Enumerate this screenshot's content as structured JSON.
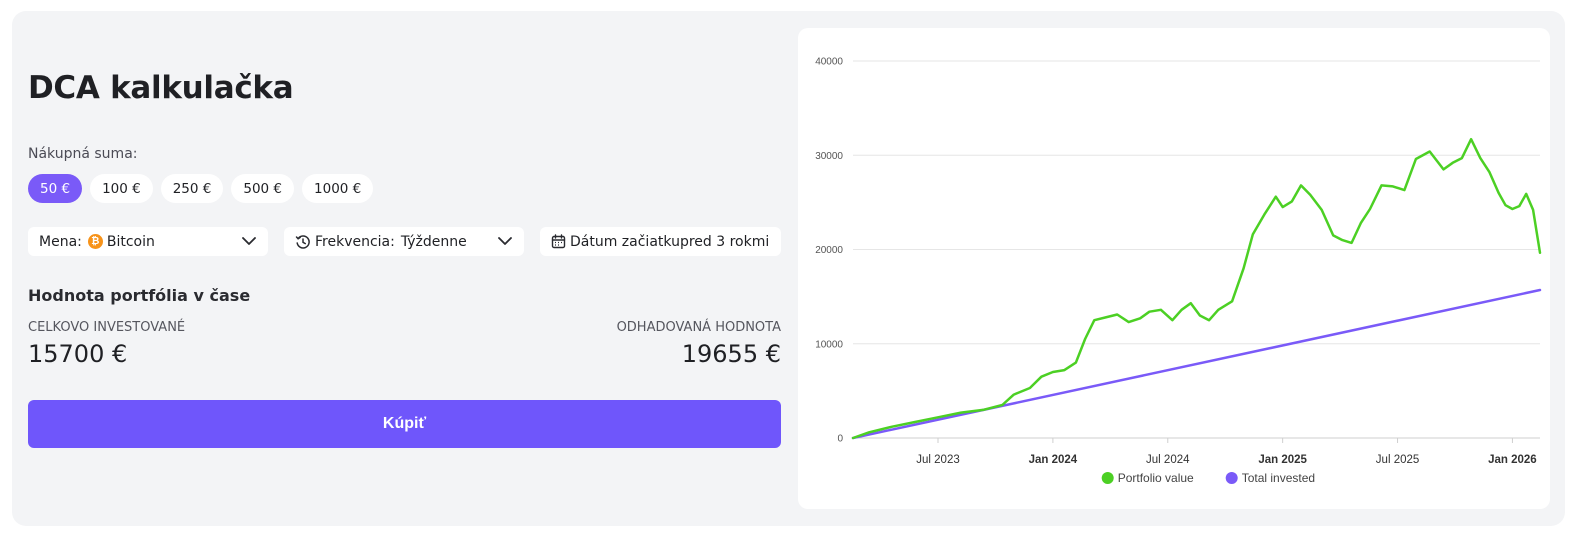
{
  "page": {
    "title": "DCA kalkulačka",
    "amount_label": "Nákupná suma:",
    "amounts": [
      "50 €",
      "100 €",
      "250 €",
      "500 €",
      "1000 €"
    ],
    "selected_amount": "50 €",
    "currency": {
      "label": "Mena:",
      "value": "Bitcoin",
      "icon": "bitcoin-icon"
    },
    "frequency": {
      "label": "Frekvencia:",
      "value": "Týždenne",
      "icon": "history-icon"
    },
    "start_date": {
      "label": "Dátum začiatku",
      "value": "pred 3 rokmi",
      "icon": "calendar-icon"
    },
    "section_title": "Hodnota portfólia v čase",
    "total_invested": {
      "label": "Celkovo investované",
      "value": "15700 €"
    },
    "estimated_value": {
      "label": "Odhadovaná hodnota",
      "value": "19655 €"
    },
    "buy_label": "Kúpiť",
    "colors": {
      "accent": "#7a5af8",
      "button": "#6f56fb",
      "portfolio": "#4cd024",
      "invested": "#7a5af8"
    }
  },
  "chart_data": {
    "type": "line",
    "title": "",
    "xlabel": "",
    "ylabel": "",
    "ylim": [
      0,
      40000
    ],
    "yticks": [
      "0",
      "10000",
      "20000",
      "30000",
      "40000"
    ],
    "xticks": [
      {
        "label": "Jul 2023",
        "t": 2023.5,
        "bold": false
      },
      {
        "label": "Jan 2024",
        "t": 2024.0,
        "bold": true
      },
      {
        "label": "Jul 2024",
        "t": 2024.5,
        "bold": false
      },
      {
        "label": "Jan 2025",
        "t": 2025.0,
        "bold": true
      },
      {
        "label": "Jul 2025",
        "t": 2025.5,
        "bold": false
      },
      {
        "label": "Jan 2026",
        "t": 2026.0,
        "bold": true
      }
    ],
    "xlim": [
      2023.13,
      2026.12
    ],
    "legend": "bottom",
    "grid": true,
    "series": [
      {
        "name": "Portfolio value",
        "color": "#4cd024",
        "points": [
          [
            2023.13,
            0
          ],
          [
            2023.2,
            600
          ],
          [
            2023.3,
            1200
          ],
          [
            2023.4,
            1700
          ],
          [
            2023.5,
            2200
          ],
          [
            2023.6,
            2700
          ],
          [
            2023.7,
            3000
          ],
          [
            2023.78,
            3500
          ],
          [
            2023.83,
            4600
          ],
          [
            2023.9,
            5300
          ],
          [
            2023.95,
            6500
          ],
          [
            2024.0,
            7000
          ],
          [
            2024.05,
            7200
          ],
          [
            2024.1,
            8000
          ],
          [
            2024.14,
            10500
          ],
          [
            2024.18,
            12500
          ],
          [
            2024.23,
            12800
          ],
          [
            2024.28,
            13100
          ],
          [
            2024.33,
            12300
          ],
          [
            2024.38,
            12700
          ],
          [
            2024.42,
            13400
          ],
          [
            2024.47,
            13600
          ],
          [
            2024.52,
            12500
          ],
          [
            2024.56,
            13600
          ],
          [
            2024.6,
            14300
          ],
          [
            2024.64,
            13000
          ],
          [
            2024.68,
            12500
          ],
          [
            2024.72,
            13600
          ],
          [
            2024.78,
            14500
          ],
          [
            2024.83,
            18000
          ],
          [
            2024.87,
            21600
          ],
          [
            2024.92,
            23700
          ],
          [
            2024.97,
            25600
          ],
          [
            2025.0,
            24500
          ],
          [
            2025.04,
            25100
          ],
          [
            2025.08,
            26800
          ],
          [
            2025.12,
            25800
          ],
          [
            2025.17,
            24200
          ],
          [
            2025.22,
            21500
          ],
          [
            2025.26,
            21000
          ],
          [
            2025.3,
            20700
          ],
          [
            2025.34,
            22800
          ],
          [
            2025.38,
            24300
          ],
          [
            2025.43,
            26800
          ],
          [
            2025.48,
            26700
          ],
          [
            2025.53,
            26300
          ],
          [
            2025.58,
            29600
          ],
          [
            2025.64,
            30400
          ],
          [
            2025.7,
            28500
          ],
          [
            2025.74,
            29200
          ],
          [
            2025.78,
            29700
          ],
          [
            2025.82,
            31700
          ],
          [
            2025.86,
            29700
          ],
          [
            2025.9,
            28200
          ],
          [
            2025.94,
            26000
          ],
          [
            2025.97,
            24700
          ],
          [
            2026.0,
            24300
          ],
          [
            2026.03,
            24600
          ],
          [
            2026.06,
            25900
          ],
          [
            2026.09,
            24200
          ],
          [
            2026.12,
            19655
          ]
        ]
      },
      {
        "name": "Total invested",
        "color": "#7a5af8",
        "points": [
          [
            2023.13,
            0
          ],
          [
            2026.12,
            15700
          ]
        ]
      }
    ]
  }
}
